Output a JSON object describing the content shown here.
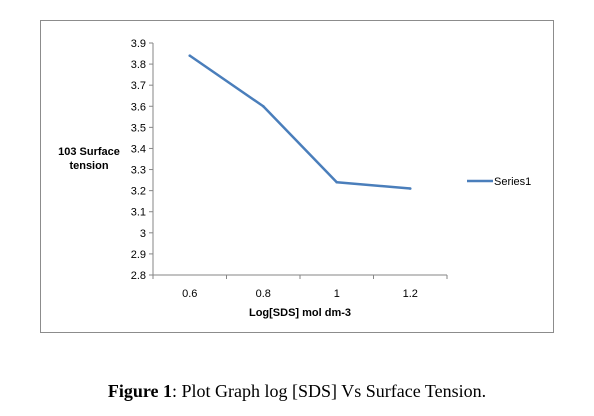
{
  "chart_data": {
    "type": "line",
    "xlabel": "Log[SDS] mol dm-3",
    "ylabel_lines": [
      "103 Surface",
      "tension"
    ],
    "x": [
      0.6,
      0.8,
      1,
      1.2
    ],
    "x_tick_labels": [
      "0.6",
      "0.8",
      "1",
      "1.2"
    ],
    "y_ticks": [
      2.8,
      2.9,
      3,
      3.1,
      3.2,
      3.3,
      3.4,
      3.5,
      3.6,
      3.7,
      3.8,
      3.9
    ],
    "y_tick_labels": [
      "2.8",
      "2.9",
      "3",
      "3.1",
      "3.2",
      "3.3",
      "3.4",
      "3.5",
      "3.6",
      "3.7",
      "3.8",
      "3.9"
    ],
    "ylim": [
      2.8,
      3.9
    ],
    "series": [
      {
        "name": "Series1",
        "values": [
          3.84,
          3.6,
          3.24,
          3.21
        ]
      }
    ],
    "legend_position": "right",
    "grid": false,
    "colors": {
      "series": "#4a7ebb",
      "axis": "#868686",
      "text": "#000000"
    }
  },
  "caption": {
    "label": "Figure 1",
    "text": ": Plot Graph log [SDS] Vs Surface Tension."
  }
}
